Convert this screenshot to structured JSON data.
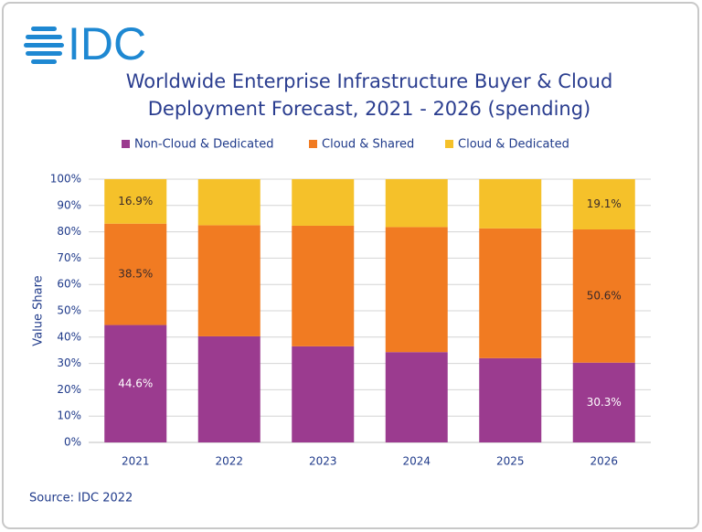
{
  "logo": "IDC",
  "source": "Source: IDC 2022",
  "chart_data": {
    "type": "stacked_bar",
    "title": [
      "Worldwide Enterprise Infrastructure Buyer & Cloud",
      "Deployment Forecast, 2021 - 2026 (spending)"
    ],
    "y_label": "Value  Share",
    "categories": [
      "2021",
      "2022",
      "2023",
      "2024",
      "2025",
      "2026"
    ],
    "series": [
      {
        "name": "Non-Cloud & Dedicated",
        "color": "#9b3b8f",
        "values": [
          44.6,
          40.3,
          36.5,
          34.3,
          32.0,
          30.3
        ],
        "value_labels": [
          "44.6%",
          null,
          null,
          null,
          null,
          "30.3%"
        ],
        "label_color": "#ffffff"
      },
      {
        "name": "Cloud & Shared",
        "color": "#f17b22",
        "values": [
          38.5,
          42.2,
          45.8,
          47.5,
          49.3,
          50.6
        ],
        "value_labels": [
          "38.5%",
          null,
          null,
          null,
          null,
          "50.6%"
        ],
        "label_color": "#3a2a2a"
      },
      {
        "name": "Cloud & Dedicated",
        "color": "#f5c12a",
        "values": [
          16.9,
          17.5,
          17.7,
          18.2,
          18.7,
          19.1
        ],
        "value_labels": [
          "16.9%",
          null,
          null,
          null,
          null,
          "19.1%"
        ],
        "label_color": "#3a2a2a"
      }
    ],
    "ylim": [
      0,
      100
    ],
    "yticks": [
      {
        "value": 0,
        "label": "0%"
      },
      {
        "value": 10,
        "label": "10%"
      },
      {
        "value": 20,
        "label": "20%"
      },
      {
        "value": 30,
        "label": "30%"
      },
      {
        "value": 40,
        "label": "40%"
      },
      {
        "value": 50,
        "label": "50%"
      },
      {
        "value": 60,
        "label": "60%"
      },
      {
        "value": 70,
        "label": "70%"
      },
      {
        "value": 80,
        "label": "80%"
      },
      {
        "value": 90,
        "label": "90%"
      },
      {
        "value": 100,
        "label": "100%"
      }
    ],
    "grid": true
  }
}
